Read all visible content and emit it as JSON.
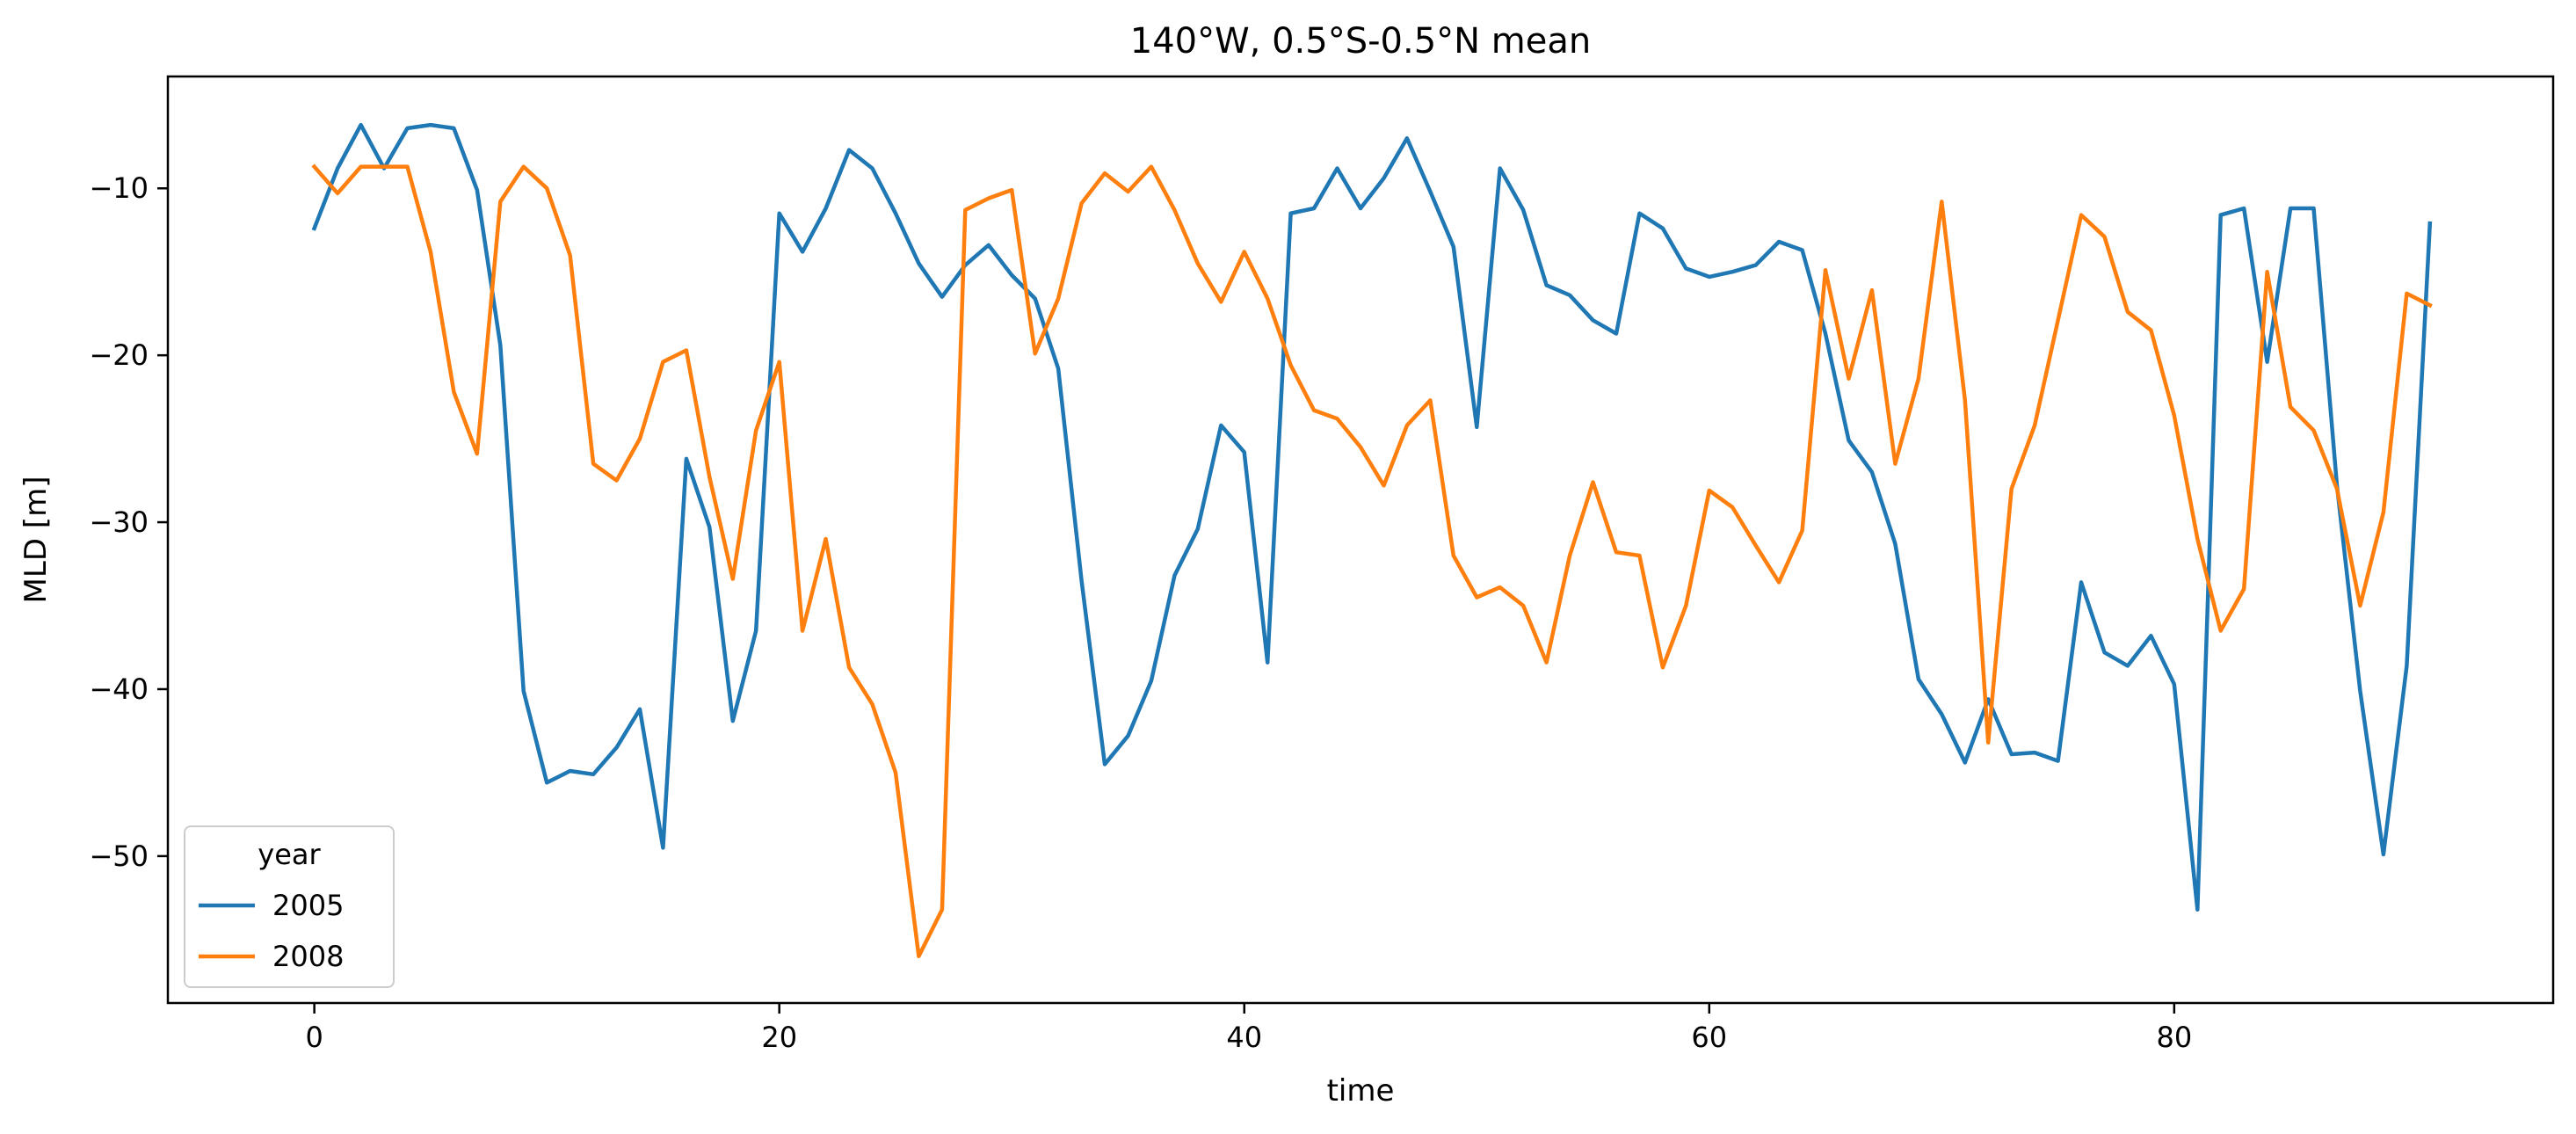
{
  "chart_data": {
    "type": "line",
    "title": "140°W, 0.5°S-0.5°N mean",
    "xlabel": "time",
    "ylabel": "MLD [m]",
    "xlim": [
      -6.3,
      96.3
    ],
    "ylim": [
      -58.8,
      -3.3
    ],
    "xticks": [
      0,
      20,
      40,
      60,
      80
    ],
    "yticks": [
      -10,
      -20,
      -30,
      -40,
      -50
    ],
    "grid": false,
    "legend": {
      "title": "year",
      "placement": "lower-left"
    },
    "series": [
      {
        "name": "2005",
        "color": "#1f77b4",
        "x": [
          0,
          1,
          2,
          3,
          4,
          5,
          6,
          7,
          8,
          9,
          10,
          11,
          12,
          13,
          14,
          15,
          16,
          17,
          18,
          19,
          20,
          21,
          22,
          23,
          24,
          25,
          26,
          27,
          28,
          29,
          30,
          31,
          32,
          33,
          34,
          35,
          36,
          37,
          38,
          39,
          40,
          41,
          42,
          43,
          44,
          45,
          46,
          47,
          48,
          49,
          50,
          51,
          52,
          53,
          54,
          55,
          56,
          57,
          58,
          59,
          60,
          61,
          62,
          63,
          64,
          65,
          66,
          67,
          68,
          69,
          70,
          71,
          72,
          73,
          74,
          75,
          76,
          77,
          78,
          79,
          80,
          81,
          82,
          83,
          84,
          85,
          86,
          87,
          88,
          89,
          90,
          91
        ],
        "values": [
          -12.4,
          -8.8,
          -6.2,
          -8.8,
          -6.4,
          -6.2,
          -6.4,
          -10.1,
          -19.4,
          -40.1,
          -45.6,
          -44.9,
          -45.1,
          -43.5,
          -41.2,
          -49.5,
          -26.2,
          -30.3,
          -41.9,
          -36.5,
          -11.5,
          -13.8,
          -11.2,
          -7.7,
          -8.8,
          -11.5,
          -14.5,
          -16.5,
          -14.6,
          -13.4,
          -15.2,
          -16.6,
          -20.8,
          -33.5,
          -44.5,
          -42.8,
          -39.5,
          -33.2,
          -30.4,
          -24.2,
          -25.8,
          -38.4,
          -11.5,
          -11.2,
          -8.8,
          -11.2,
          -9.4,
          -7.0,
          -10.2,
          -13.5,
          -24.3,
          -8.8,
          -11.3,
          -15.8,
          -16.4,
          -17.9,
          -18.7,
          -11.5,
          -12.4,
          -14.8,
          -15.3,
          -15.0,
          -14.6,
          -13.2,
          -13.7,
          -18.7,
          -25.1,
          -27.0,
          -31.3,
          -39.4,
          -41.5,
          -44.4,
          -40.6,
          -43.9,
          -43.8,
          -44.3,
          -33.6,
          -37.8,
          -38.6,
          -36.8,
          -39.7,
          -53.2,
          -11.6,
          -11.2,
          -20.4,
          -11.2,
          -11.2,
          -27.8,
          -40.1,
          -49.9,
          -38.6,
          -12.1
        ]
      },
      {
        "name": "2008",
        "color": "#ff7f0e",
        "x": [
          0,
          1,
          2,
          3,
          4,
          5,
          6,
          7,
          8,
          9,
          10,
          11,
          12,
          13,
          14,
          15,
          16,
          17,
          18,
          19,
          20,
          21,
          22,
          23,
          24,
          25,
          26,
          27,
          28,
          29,
          30,
          31,
          32,
          33,
          34,
          35,
          36,
          37,
          38,
          39,
          40,
          41,
          42,
          43,
          44,
          45,
          46,
          47,
          48,
          49,
          50,
          51,
          52,
          53,
          54,
          55,
          56,
          57,
          58,
          59,
          60,
          61,
          62,
          63,
          64,
          65,
          66,
          67,
          68,
          69,
          70,
          71,
          72,
          73,
          74,
          75,
          76,
          77,
          78,
          79,
          80,
          81,
          82,
          83,
          84,
          85,
          86,
          87,
          88,
          89,
          90,
          91
        ],
        "values": [
          -8.7,
          -10.3,
          -8.7,
          -8.7,
          -8.7,
          -13.8,
          -22.2,
          -25.9,
          -10.8,
          -8.7,
          -10.0,
          -14.0,
          -26.5,
          -27.5,
          -25.0,
          -20.4,
          -19.7,
          -27.3,
          -33.4,
          -24.5,
          -20.4,
          -36.5,
          -31.0,
          -38.7,
          -40.9,
          -45.0,
          -56.0,
          -53.2,
          -11.3,
          -10.6,
          -10.1,
          -19.9,
          -16.6,
          -10.9,
          -9.1,
          -10.2,
          -8.7,
          -11.3,
          -14.5,
          -16.8,
          -13.8,
          -16.6,
          -20.6,
          -23.3,
          -23.8,
          -25.5,
          -27.8,
          -24.2,
          -22.7,
          -32.0,
          -34.5,
          -33.9,
          -35.0,
          -38.4,
          -32.0,
          -27.6,
          -31.8,
          -32.0,
          -38.7,
          -35.0,
          -28.1,
          -29.1,
          -31.4,
          -33.6,
          -30.5,
          -14.9,
          -21.4,
          -16.1,
          -26.5,
          -21.4,
          -10.8,
          -22.7,
          -43.2,
          -28.0,
          -24.2,
          -17.9,
          -11.6,
          -12.9,
          -17.4,
          -18.5,
          -23.6,
          -31.0,
          -36.5,
          -34.0,
          -15.0,
          -23.1,
          -24.5,
          -28.0,
          -35.0,
          -29.4,
          -16.3,
          -17.0
        ]
      }
    ]
  }
}
